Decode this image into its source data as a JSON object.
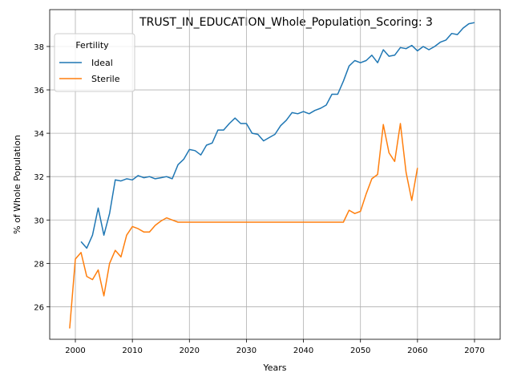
{
  "chart_data": {
    "type": "line",
    "title": "TRUST_IN_EDUCATION_Whole_Population_Scoring: 3",
    "xlabel": "Years",
    "ylabel": "% of Whole Population",
    "xlim": [
      1995.5,
      2074.5
    ],
    "ylim": [
      24.5,
      39.7
    ],
    "xticks": [
      2000,
      2010,
      2020,
      2030,
      2040,
      2050,
      2060,
      2070
    ],
    "yticks": [
      26,
      28,
      30,
      32,
      34,
      36,
      38
    ],
    "grid": true,
    "legend": {
      "title": "Fertility",
      "placement": "upper-left"
    },
    "series": [
      {
        "name": "Ideal",
        "color": "#1f77b4",
        "x": [
          2001,
          2002,
          2003,
          2004,
          2005,
          2006,
          2007,
          2008,
          2009,
          2010,
          2011,
          2012,
          2013,
          2014,
          2015,
          2016,
          2017,
          2018,
          2019,
          2020,
          2021,
          2022,
          2023,
          2024,
          2025,
          2026,
          2027,
          2028,
          2029,
          2030,
          2031,
          2032,
          2033,
          2034,
          2035,
          2036,
          2037,
          2038,
          2039,
          2040,
          2041,
          2042,
          2043,
          2044,
          2045,
          2046,
          2047,
          2048,
          2049,
          2050,
          2051,
          2052,
          2053,
          2054,
          2055,
          2056,
          2057,
          2058,
          2059,
          2060,
          2061,
          2062,
          2063,
          2064,
          2065,
          2066,
          2067,
          2068,
          2069,
          2070
        ],
        "y": [
          29.0,
          28.7,
          29.3,
          30.55,
          29.3,
          30.3,
          31.85,
          31.8,
          31.9,
          31.85,
          32.05,
          31.95,
          32.0,
          31.9,
          31.95,
          32.0,
          31.9,
          32.55,
          32.8,
          33.25,
          33.2,
          33.0,
          33.45,
          33.55,
          34.15,
          34.15,
          34.45,
          34.7,
          34.45,
          34.45,
          34.0,
          33.95,
          33.65,
          33.8,
          33.95,
          34.35,
          34.6,
          34.95,
          34.9,
          35.0,
          34.9,
          35.05,
          35.15,
          35.3,
          35.8,
          35.8,
          36.4,
          37.1,
          37.35,
          37.25,
          37.35,
          37.6,
          37.25,
          37.85,
          37.55,
          37.6,
          37.95,
          37.9,
          38.05,
          37.8,
          38.0,
          37.85,
          38.0,
          38.2,
          38.3,
          38.6,
          38.55,
          38.85,
          39.05,
          39.1
        ]
      },
      {
        "name": "Sterile",
        "color": "#ff7f0e",
        "x": [
          1999,
          2000,
          2001,
          2002,
          2003,
          2004,
          2005,
          2006,
          2007,
          2008,
          2009,
          2010,
          2011,
          2012,
          2013,
          2014,
          2015,
          2016,
          2017,
          2018,
          2019,
          2020,
          2021,
          2022,
          2023,
          2024,
          2025,
          2026,
          2027,
          2028,
          2029,
          2030,
          2031,
          2032,
          2033,
          2034,
          2035,
          2036,
          2037,
          2038,
          2039,
          2040,
          2041,
          2042,
          2043,
          2044,
          2045,
          2046,
          2047,
          2048,
          2049,
          2050,
          2051,
          2052,
          2053,
          2054,
          2055,
          2056,
          2057,
          2058,
          2059,
          2060
        ],
        "y": [
          25.0,
          28.2,
          28.5,
          27.4,
          27.25,
          27.7,
          26.5,
          28.0,
          28.6,
          28.3,
          29.3,
          29.7,
          29.6,
          29.45,
          29.45,
          29.75,
          29.95,
          30.1,
          30.0,
          29.9,
          29.9,
          29.9,
          29.9,
          29.9,
          29.9,
          29.9,
          29.9,
          29.9,
          29.9,
          29.9,
          29.9,
          29.9,
          29.9,
          29.9,
          29.9,
          29.9,
          29.9,
          29.9,
          29.9,
          29.9,
          29.9,
          29.9,
          29.9,
          29.9,
          29.9,
          29.9,
          29.9,
          29.9,
          29.9,
          30.45,
          30.3,
          30.4,
          31.2,
          31.9,
          32.1,
          34.4,
          33.1,
          32.7,
          34.45,
          32.2,
          30.9,
          32.4
        ]
      }
    ]
  }
}
